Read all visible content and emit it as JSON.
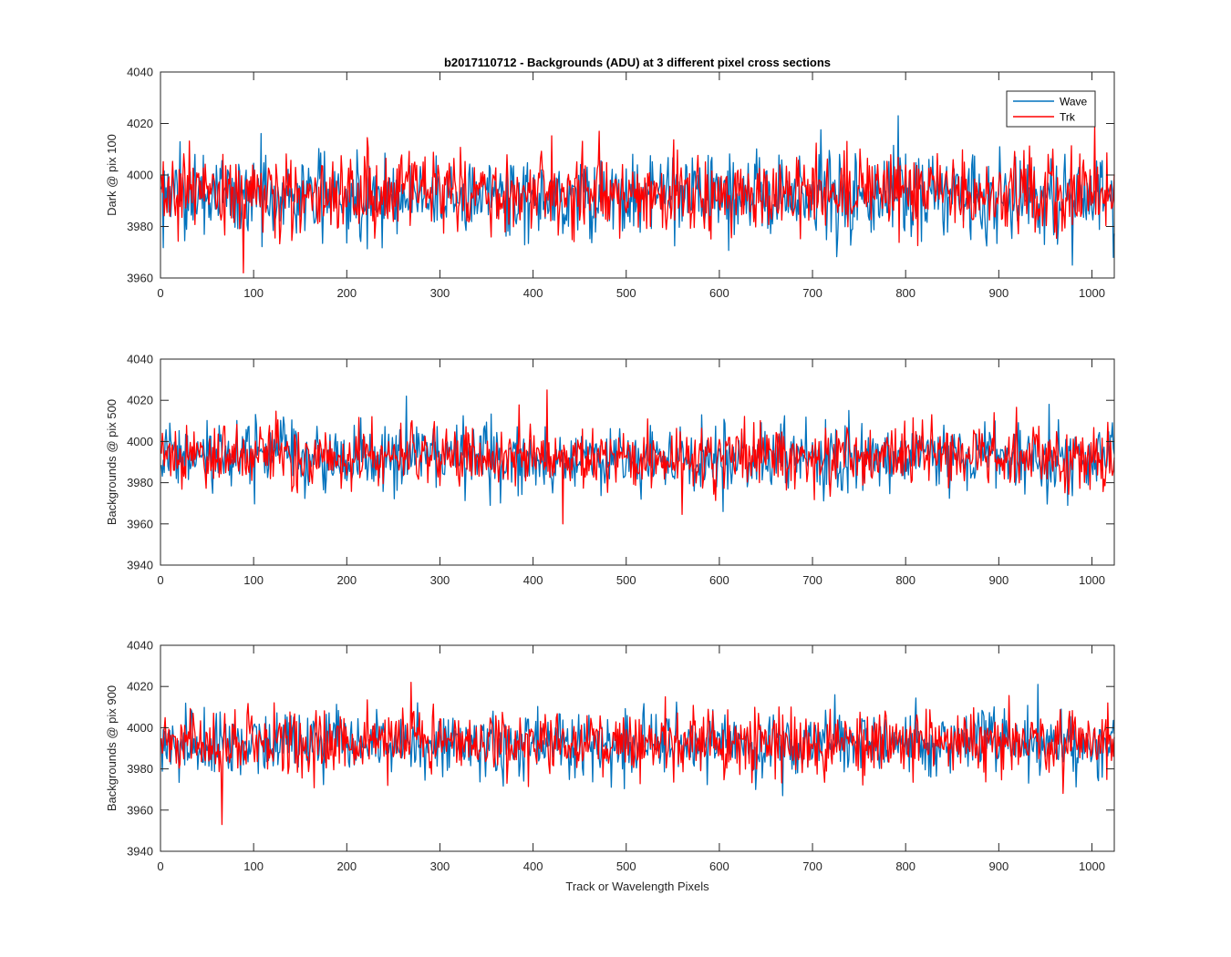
{
  "chart_data": {
    "type": "line",
    "title": "b2017110712 - Backgrounds (ADU) at 3 different pixel cross sections",
    "xlabel": "Track or Wavelength Pixels",
    "x_range": [
      0,
      1024
    ],
    "x_ticks": [
      "0",
      "100",
      "200",
      "300",
      "400",
      "500",
      "600",
      "700",
      "800",
      "900",
      "1000"
    ],
    "legend": {
      "location": "top-right of first panel",
      "entries": [
        {
          "name": "Wave",
          "color": "#0072BD"
        },
        {
          "name": "Trk",
          "color": "#FF0000"
        }
      ]
    },
    "panels": [
      {
        "ylabel": "Dark @ pix 100",
        "ylim": [
          3960,
          4040
        ],
        "y_ticks": [
          "3960",
          "3980",
          "4000",
          "4020",
          "4040"
        ],
        "series": [
          {
            "name": "Wave",
            "color": "#0072BD",
            "n_points": 1024,
            "mean": 3992,
            "std": 8,
            "min": 3965,
            "max": 4023
          },
          {
            "name": "Trk",
            "color": "#FF0000",
            "n_points": 1024,
            "mean": 3993,
            "std": 7.5,
            "min": 3962,
            "max": 4020
          }
        ]
      },
      {
        "ylabel": "Backgrounds @ pix 500",
        "ylim": [
          3940,
          4040
        ],
        "y_ticks": [
          "3940",
          "3960",
          "3980",
          "4000",
          "4020",
          "4040"
        ],
        "series": [
          {
            "name": "Wave",
            "color": "#0072BD",
            "n_points": 1024,
            "mean": 3992,
            "std": 8,
            "min": 3966,
            "max": 4022
          },
          {
            "name": "Trk",
            "color": "#FF0000",
            "n_points": 1024,
            "mean": 3993,
            "std": 7.5,
            "min": 3960,
            "max": 4025
          }
        ]
      },
      {
        "ylabel": "Backgrounds @ pix 900",
        "ylim": [
          3940,
          4040
        ],
        "y_ticks": [
          "3940",
          "3960",
          "3980",
          "4000",
          "4020",
          "4040"
        ],
        "series": [
          {
            "name": "Wave",
            "color": "#0072BD",
            "n_points": 1024,
            "mean": 3992,
            "std": 8,
            "min": 3967,
            "max": 4021
          },
          {
            "name": "Trk",
            "color": "#FF0000",
            "n_points": 1024,
            "mean": 3993,
            "std": 7.5,
            "min": 3953,
            "max": 4022
          }
        ]
      }
    ]
  }
}
